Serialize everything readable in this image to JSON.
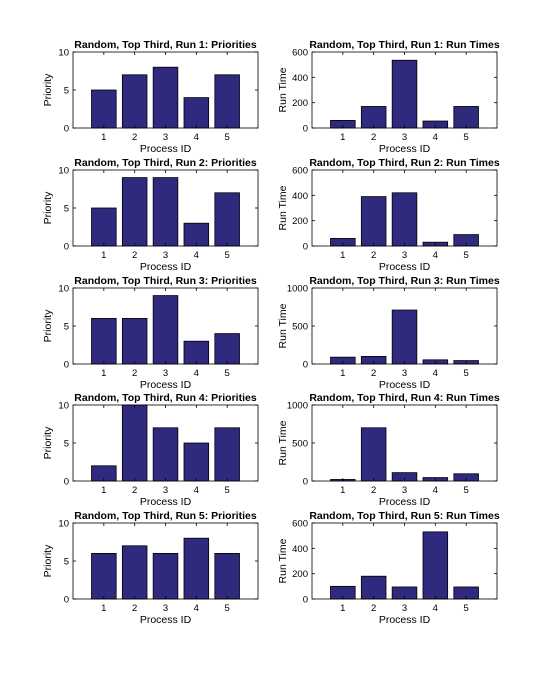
{
  "chart_data": [
    {
      "type": "bar",
      "title": "Random, Top Third, Run 1: Priorities",
      "xlabel": "Process ID",
      "ylabel": "Priority",
      "categories": [
        "1",
        "2",
        "3",
        "4",
        "5"
      ],
      "values": [
        5,
        7,
        8,
        4,
        7
      ],
      "ylim": [
        0,
        10
      ],
      "yticks": [
        0,
        5,
        10
      ],
      "bar_color": "#302a7e",
      "grid": false
    },
    {
      "type": "bar",
      "title": "Random, Top Third, Run 1: Run Times",
      "xlabel": "Process ID",
      "ylabel": "Run Time",
      "categories": [
        "1",
        "2",
        "3",
        "4",
        "5"
      ],
      "values": [
        60,
        170,
        535,
        55,
        170
      ],
      "ylim": [
        0,
        600
      ],
      "yticks": [
        0,
        200,
        400,
        600
      ],
      "bar_color": "#302a7e",
      "grid": false
    },
    {
      "type": "bar",
      "title": "Random, Top Third, Run 2: Priorities",
      "xlabel": "Process ID",
      "ylabel": "Priority",
      "categories": [
        "1",
        "2",
        "3",
        "4",
        "5"
      ],
      "values": [
        5,
        9,
        9,
        3,
        7
      ],
      "ylim": [
        0,
        10
      ],
      "yticks": [
        0,
        5,
        10
      ],
      "bar_color": "#302a7e",
      "grid": false
    },
    {
      "type": "bar",
      "title": "Random, Top Third, Run 2: Run Times",
      "xlabel": "Process ID",
      "ylabel": "Run Time",
      "categories": [
        "1",
        "2",
        "3",
        "4",
        "5"
      ],
      "values": [
        60,
        390,
        420,
        30,
        90
      ],
      "ylim": [
        0,
        600
      ],
      "yticks": [
        0,
        200,
        400,
        600
      ],
      "bar_color": "#302a7e",
      "grid": false
    },
    {
      "type": "bar",
      "title": "Random, Top Third, Run 3: Priorities",
      "xlabel": "Process ID",
      "ylabel": "Priority",
      "categories": [
        "1",
        "2",
        "3",
        "4",
        "5"
      ],
      "values": [
        6,
        6,
        9,
        3,
        4
      ],
      "ylim": [
        0,
        10
      ],
      "yticks": [
        0,
        5,
        10
      ],
      "bar_color": "#302a7e",
      "grid": false
    },
    {
      "type": "bar",
      "title": "Random, Top Third, Run 3: Run Times",
      "xlabel": "Process ID",
      "ylabel": "Run Time",
      "categories": [
        "1",
        "2",
        "3",
        "4",
        "5"
      ],
      "values": [
        90,
        100,
        710,
        55,
        45
      ],
      "ylim": [
        0,
        1000
      ],
      "yticks": [
        0,
        500,
        1000
      ],
      "bar_color": "#302a7e",
      "grid": false
    },
    {
      "type": "bar",
      "title": "Random, Top Third, Run 4: Priorities",
      "xlabel": "Process ID",
      "ylabel": "Priority",
      "categories": [
        "1",
        "2",
        "3",
        "4",
        "5"
      ],
      "values": [
        2,
        10,
        7,
        5,
        7
      ],
      "ylim": [
        0,
        10
      ],
      "yticks": [
        0,
        5,
        10
      ],
      "bar_color": "#302a7e",
      "grid": false
    },
    {
      "type": "bar",
      "title": "Random, Top Third, Run 4: Run Times",
      "xlabel": "Process ID",
      "ylabel": "Run Time",
      "categories": [
        "1",
        "2",
        "3",
        "4",
        "5"
      ],
      "values": [
        20,
        700,
        110,
        45,
        95
      ],
      "ylim": [
        0,
        1000
      ],
      "yticks": [
        0,
        500,
        1000
      ],
      "bar_color": "#302a7e",
      "grid": false
    },
    {
      "type": "bar",
      "title": "Random, Top Third, Run 5: Priorities",
      "xlabel": "Process ID",
      "ylabel": "Priority",
      "categories": [
        "1",
        "2",
        "3",
        "4",
        "5"
      ],
      "values": [
        6,
        7,
        6,
        8,
        6
      ],
      "ylim": [
        0,
        10
      ],
      "yticks": [
        0,
        5,
        10
      ],
      "bar_color": "#302a7e",
      "grid": false
    },
    {
      "type": "bar",
      "title": "Random, Top Third, Run 5: Run Times",
      "xlabel": "Process ID",
      "ylabel": "Run Time",
      "categories": [
        "1",
        "2",
        "3",
        "4",
        "5"
      ],
      "values": [
        100,
        180,
        95,
        530,
        95
      ],
      "ylim": [
        0,
        600
      ],
      "yticks": [
        0,
        200,
        400,
        600
      ],
      "bar_color": "#302a7e",
      "grid": false
    }
  ]
}
